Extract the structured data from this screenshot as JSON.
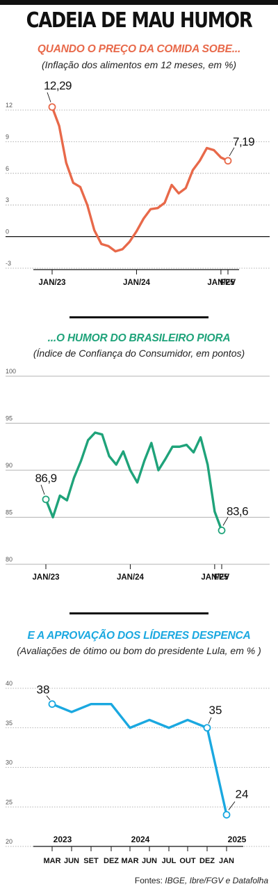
{
  "page": {
    "title": "CADEIA DE MAU HUMOR",
    "source_prefix": "Fontes: ",
    "source_names": "IBGE, Ibre/FGV e Datafolha"
  },
  "colors": {
    "food": "#e8694a",
    "confidence": "#1fa37a",
    "approval": "#1aa8e0"
  },
  "sections": [
    {
      "title": "QUANDO O PREÇO DA COMIDA SOBE...",
      "subtitle": "(Inflação dos alimentos em 12 meses, em %)"
    },
    {
      "title": "...O HUMOR DO BRASILEIRO PIORA",
      "subtitle": "(Índice de Confiança do Consumidor, em pontos)"
    },
    {
      "title": "E A APROVAÇÃO DOS LÍDERES DESPENCA",
      "subtitle": "(Avaliações de ótimo ou bom do presidente Lula, em % )"
    }
  ],
  "chart_data": [
    {
      "type": "line",
      "title": "QUANDO O PREÇO DA COMIDA SOBE...",
      "subtitle": "(Inflação dos alimentos em 12 meses, em %)",
      "ylim": [
        -3,
        12
      ],
      "yticks": [
        12,
        9,
        6,
        3,
        0,
        -3
      ],
      "ytick_labels": [
        "12",
        "9",
        "6",
        "3",
        "0",
        "-3"
      ],
      "xlim": [
        0,
        25
      ],
      "xticks": [
        {
          "x": 0,
          "label": "JAN/23"
        },
        {
          "x": 12,
          "label": "JAN/24"
        },
        {
          "x": 24,
          "label": "JAN/25"
        },
        {
          "x": 25,
          "label": "FEV"
        }
      ],
      "x": [
        0,
        1,
        2,
        3,
        4,
        5,
        6,
        7,
        8,
        9,
        10,
        11,
        12,
        13,
        14,
        15,
        16,
        17,
        18,
        19,
        20,
        21,
        22,
        23,
        24,
        25
      ],
      "values": [
        12.29,
        10.5,
        7.0,
        5.1,
        4.7,
        3.0,
        0.6,
        -0.7,
        -0.9,
        -1.4,
        -1.2,
        -0.5,
        0.5,
        1.7,
        2.6,
        2.7,
        3.2,
        4.9,
        4.1,
        4.6,
        6.3,
        7.2,
        8.4,
        8.2,
        7.5,
        7.19
      ],
      "annotations": [
        {
          "x": 0,
          "label": "12,29",
          "pos": "above"
        },
        {
          "x": 25,
          "label": "7,19",
          "pos": "above-right"
        }
      ],
      "zero_line": true,
      "grid": "dotted"
    },
    {
      "type": "line",
      "title": "...O HUMOR DO BRASILEIRO PIORA",
      "subtitle": "(Índice de Confiança do Consumidor, em pontos)",
      "ylim": [
        80,
        100
      ],
      "yticks": [
        100,
        95,
        90,
        85,
        80
      ],
      "ytick_labels": [
        "100",
        "95",
        "90",
        "85",
        "80"
      ],
      "xlim": [
        0,
        25
      ],
      "xticks": [
        {
          "x": 0,
          "label": "JAN/23"
        },
        {
          "x": 12,
          "label": "JAN/24"
        },
        {
          "x": 24,
          "label": "JAN/25"
        },
        {
          "x": 25,
          "label": "FEV"
        }
      ],
      "x": [
        0,
        1,
        2,
        3,
        4,
        5,
        6,
        7,
        8,
        9,
        10,
        11,
        12,
        13,
        14,
        15,
        16,
        17,
        18,
        19,
        20,
        21,
        22,
        23,
        24,
        25
      ],
      "values": [
        86.9,
        85.0,
        87.3,
        86.8,
        89.2,
        91.0,
        93.2,
        94.0,
        93.8,
        91.5,
        90.6,
        92.0,
        90.0,
        88.7,
        91.0,
        92.9,
        90.0,
        91.2,
        92.5,
        92.5,
        92.7,
        91.9,
        93.5,
        90.6,
        85.6,
        83.6
      ],
      "annotations": [
        {
          "x": 0,
          "label": "86,9",
          "pos": "above"
        },
        {
          "x": 25,
          "label": "83,6",
          "pos": "above-right"
        }
      ],
      "grid": "solid"
    },
    {
      "type": "line",
      "title": "E A APROVAÇÃO DOS LÍDERES DESPENCA",
      "subtitle": "(Avaliações de ótimo ou bom do presidente Lula, em % )",
      "ylim": [
        20,
        40
      ],
      "yticks": [
        40,
        35,
        30,
        25,
        20
      ],
      "ytick_labels": [
        "40",
        "35",
        "30",
        "25",
        "20"
      ],
      "categories": [
        "MAR",
        "JUN",
        "SET",
        "DEZ",
        "MAR",
        "JUN",
        "JUL",
        "OUT",
        "DEZ",
        "JAN"
      ],
      "year_labels": [
        {
          "index": 0,
          "label": "2023"
        },
        {
          "index": 4,
          "label": "2024"
        },
        {
          "index": 9,
          "label": "2025"
        }
      ],
      "values": [
        38,
        37,
        38,
        38,
        35,
        36,
        35,
        36,
        35,
        24
      ],
      "annotations": [
        {
          "index": 0,
          "label": "38",
          "pos": "above-left"
        },
        {
          "index": 8,
          "label": "35",
          "pos": "above"
        },
        {
          "index": 9,
          "label": "24",
          "pos": "above-right"
        }
      ],
      "grid": "dotted"
    }
  ]
}
